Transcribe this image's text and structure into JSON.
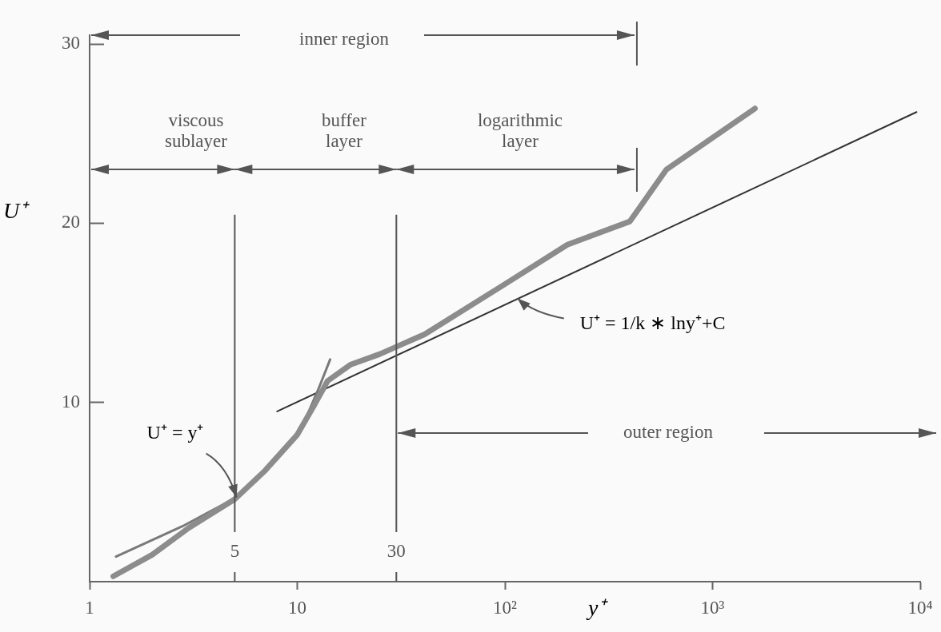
{
  "chart_data": {
    "type": "line",
    "xlabel": "y⁺",
    "ylabel": "U⁺",
    "annotations": [
      "inner region",
      "viscous sublayer",
      "buffer layer",
      "logarithmic layer",
      "outer region",
      {
        "text": "U⁺ = y⁺",
        "x": 5.1,
        "y": 4.7
      },
      {
        "text": "U⁺ = 1/k ∗ lny⁺+C",
        "x": 115,
        "y": 15.8
      }
    ],
    "series": [
      {
        "color": "#8c8c8c",
        "x": [
          1.3,
          2,
          3,
          5,
          7,
          10,
          12,
          14,
          18,
          25,
          41,
          100,
          200,
          400,
          600,
          1600
        ],
        "values": [
          0.3,
          1.5,
          3.0,
          4.6,
          6.2,
          8.2,
          9.8,
          11.2,
          12.1,
          12.7,
          13.8,
          16.6,
          18.8,
          20.1,
          23,
          26.4
        ]
      },
      {
        "color": "#7a7a7a",
        "x": [
          1.34,
          2.81,
          5.1,
          6.3,
          9,
          10.7,
          12.6,
          14.4
        ],
        "values": [
          1.4,
          3.1,
          4.7,
          5.6,
          7.6,
          8.8,
          10.7,
          12.4
        ]
      },
      {
        "color": "#333333",
        "x": [
          8,
          9600
        ],
        "values": [
          9.5,
          26.2
        ]
      }
    ],
    "xlim": [
      1,
      10000
    ],
    "xticks": [
      1,
      10,
      {
        "value": 100,
        "label": "10²"
      },
      {
        "value": 1000,
        "label": "10³"
      },
      {
        "value": 10000,
        "label": "10⁴"
      }
    ],
    "ylim": [
      0,
      30.5
    ],
    "yticks": [
      10,
      20,
      30
    ],
    "log": "x",
    "grid": false,
    "legend": false,
    "marker": "none",
    "line_style": "solid",
    "ref_lines": [
      {
        "axis": "x",
        "value": 5,
        "label": "5"
      },
      {
        "axis": "x",
        "value": 30,
        "label": "30"
      }
    ]
  }
}
